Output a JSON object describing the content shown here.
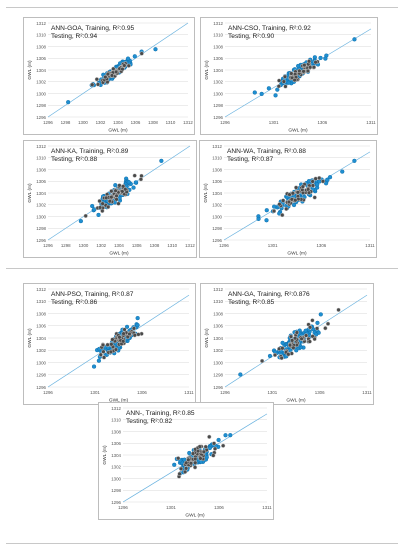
{
  "figure": {
    "colors": {
      "training": "#1f8fd1",
      "testing": "#4a4a4a",
      "fit_line": "#69b2df",
      "grid": "#d9d9d9",
      "axis_text": "#555555"
    }
  },
  "chart_data": [
    {
      "type": "scatter",
      "title_training": "ANN-GOA, Training, R²:0.95",
      "title_testing": "Testing, R²:0.94",
      "xlabel": "GWL (m)",
      "ylabel": "GWL (m)",
      "xlim": [
        1296,
        1312
      ],
      "ylim": [
        1296,
        1312
      ],
      "xticks": [
        "1296",
        "1298",
        "1300",
        "1302",
        "1304",
        "1306",
        "1308",
        "1310",
        "1312"
      ],
      "yticks": [
        "1312",
        "1310",
        "1308",
        "1306",
        "1304",
        "1302",
        "1300",
        "1298",
        "1296"
      ],
      "spread": 0.8,
      "seed": 11,
      "grid": true,
      "fit_line": "y=x"
    },
    {
      "type": "scatter",
      "title_training": "ANN-CSO, Training, R²:0.92",
      "title_testing": "Testing, R²:0.90",
      "xlabel": "GWL (m)",
      "ylabel": "GWL (m)",
      "xlim": [
        1296,
        1311
      ],
      "ylim": [
        1296,
        1312
      ],
      "xticks": [
        "1296",
        "1301",
        "1306",
        "1311"
      ],
      "yticks": [
        "1312",
        "1310",
        "1308",
        "1306",
        "1304",
        "1302",
        "1300",
        "1298",
        "1296"
      ],
      "spread": 1.1,
      "seed": 23,
      "grid": true,
      "fit_line": "y=x"
    },
    {
      "type": "scatter",
      "title_training": "ANN-KA, Training, R²:0.89",
      "title_testing": "Testing, R²:0.88",
      "xlabel": "GWL (m)",
      "ylabel": "GWL (m)",
      "xlim": [
        1296,
        1312
      ],
      "ylim": [
        1296,
        1312
      ],
      "xticks": [
        "1296",
        "1298",
        "1300",
        "1302",
        "1304",
        "1306",
        "1308",
        "1310",
        "1312"
      ],
      "yticks": [
        "1312",
        "1310",
        "1308",
        "1306",
        "1304",
        "1302",
        "1300",
        "1298",
        "1296"
      ],
      "spread": 1.3,
      "seed": 37,
      "grid": true,
      "fit_line": "y=x"
    },
    {
      "type": "scatter",
      "title_training": "ANN-WA, Training, R²:0.88",
      "title_testing": "Testing, R²:0.87",
      "xlabel": "GWL (m)",
      "ylabel": "GWL (m)",
      "xlim": [
        1296,
        1311
      ],
      "ylim": [
        1296,
        1312
      ],
      "xticks": [
        "1296",
        "1301",
        "1306",
        "1311"
      ],
      "yticks": [
        "1312",
        "1310",
        "1308",
        "1306",
        "1304",
        "1302",
        "1300",
        "1298",
        "1296"
      ],
      "spread": 1.4,
      "seed": 41,
      "grid": true,
      "fit_line": "y=x"
    },
    {
      "type": "scatter",
      "title_training": "ANN-PSO, Training, R²:0.87",
      "title_testing": "Testing, R²:0.86",
      "xlabel": "GWL (m)",
      "ylabel": "GWL (m)",
      "xlim": [
        1296,
        1311
      ],
      "ylim": [
        1296,
        1312
      ],
      "xticks": [
        "1296",
        "1301",
        "1306",
        "1311"
      ],
      "yticks": [
        "1312",
        "1310",
        "1308",
        "1306",
        "1304",
        "1302",
        "1300",
        "1298",
        "1296"
      ],
      "spread": 1.5,
      "seed": 53,
      "grid": true,
      "fit_line": "y=x"
    },
    {
      "type": "scatter",
      "title_training": "ANN-GA, Training, R²:0.876",
      "title_testing": "Testing, R²:0.85",
      "xlabel": "GWL (m)",
      "ylabel": "GWL (m)",
      "xlim": [
        1296,
        1311
      ],
      "ylim": [
        1296,
        1312
      ],
      "xticks": [
        "1296",
        "1301",
        "1306",
        "1311"
      ],
      "yticks": [
        "1312",
        "1310",
        "1308",
        "1306",
        "1304",
        "1302",
        "1300",
        "1298",
        "1296"
      ],
      "spread": 1.5,
      "seed": 67,
      "grid": true,
      "fit_line": "y=x"
    },
    {
      "type": "scatter",
      "title_training": "ANN-, Training, R²:0.85",
      "title_testing": "Testing, R²:0.82",
      "xlabel": "GWL (m)",
      "ylabel": "GWL (m)",
      "xlim": [
        1296,
        1311
      ],
      "ylim": [
        1296,
        1312
      ],
      "xticks": [
        "1296",
        "1301",
        "1306",
        "1311"
      ],
      "yticks": [
        "1312",
        "1310",
        "1308",
        "1306",
        "1304",
        "1302",
        "1300",
        "1298",
        "1296"
      ],
      "spread": 1.7,
      "seed": 79,
      "grid": true,
      "fit_line": "y=x"
    }
  ]
}
